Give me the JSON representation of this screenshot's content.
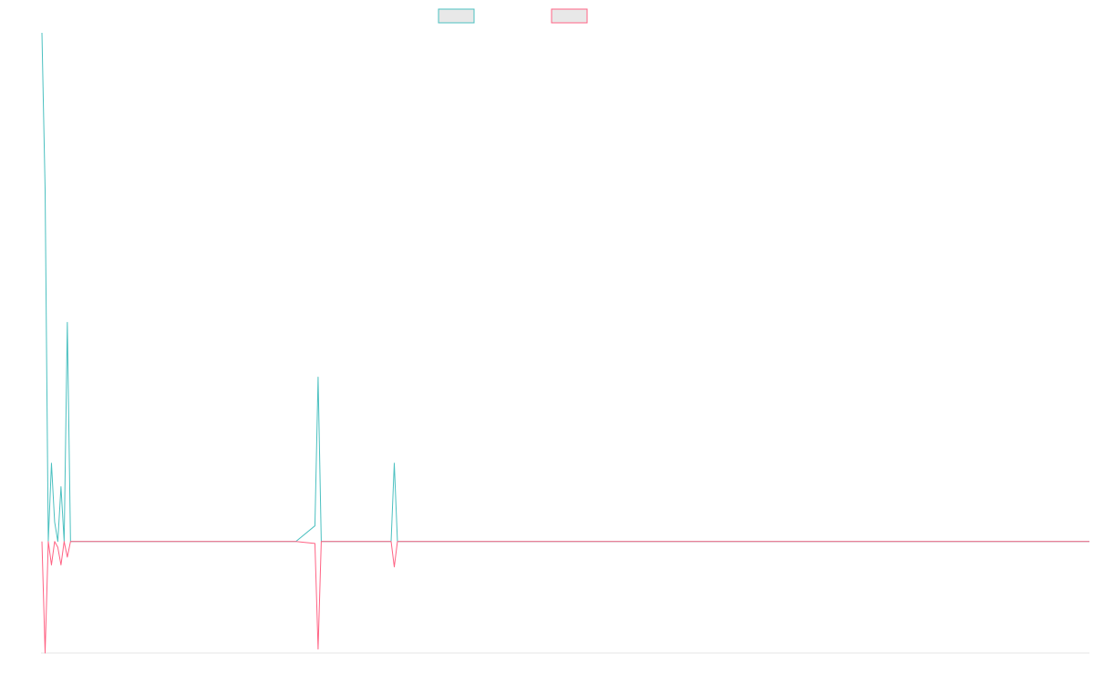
{
  "chart_data": {
    "type": "line",
    "title": "",
    "xlabel": "",
    "ylabel": "",
    "grid": false,
    "legend_position": "top-center",
    "x": [
      0,
      1,
      2,
      3,
      4,
      5,
      6,
      7,
      8,
      9,
      10,
      20,
      40,
      60,
      80,
      86,
      87,
      88,
      100,
      110,
      111,
      112,
      120,
      150,
      200,
      250,
      300,
      330
    ],
    "ylim": [
      -285,
      1300
    ],
    "series": [
      {
        "name": "",
        "color": "#4bc0c0",
        "fill": "#e8e8e8",
        "values": [
          1300,
          900,
          0,
          200,
          50,
          0,
          140,
          0,
          560,
          0,
          0,
          0,
          0,
          0,
          0,
          40,
          420,
          0,
          0,
          0,
          200,
          0,
          0,
          0,
          0,
          0,
          0,
          0
        ]
      },
      {
        "name": "",
        "color": "#ff6384",
        "fill": "#e8e8e8",
        "values": [
          0,
          -285,
          0,
          -60,
          0,
          -15,
          -60,
          0,
          -40,
          0,
          0,
          0,
          0,
          0,
          0,
          -5,
          -275,
          0,
          0,
          0,
          -65,
          0,
          0,
          0,
          0,
          0,
          0,
          0
        ]
      }
    ]
  }
}
